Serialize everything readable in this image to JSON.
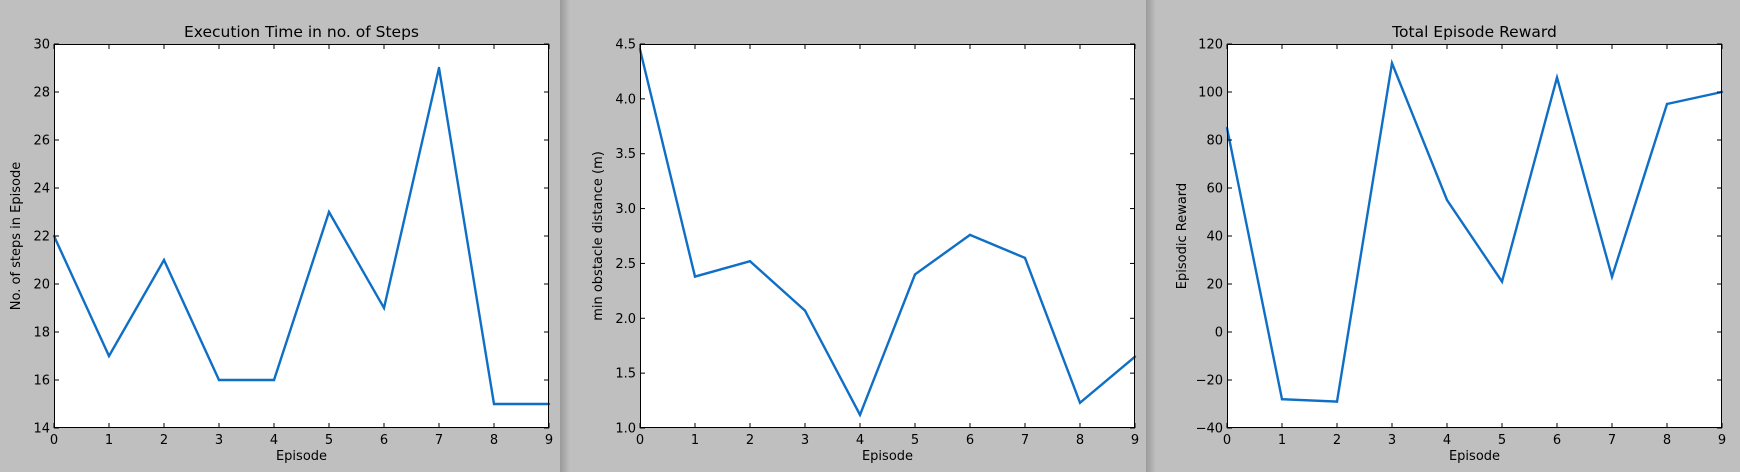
{
  "colors": {
    "line": "#0f6fc6",
    "window_bg": "#bfbfbf",
    "plot_bg": "#ffffff"
  },
  "chart_data": [
    {
      "type": "line",
      "title": "Execution Time in no. of Steps",
      "xlabel": "Episode",
      "ylabel": "No. of steps in Episode",
      "x": [
        0,
        1,
        2,
        3,
        4,
        5,
        6,
        7,
        8,
        9
      ],
      "series": [
        {
          "values": [
            22,
            17,
            21,
            16,
            16,
            23,
            19,
            29,
            15,
            15
          ]
        }
      ],
      "xlim": [
        0,
        9
      ],
      "ylim": [
        14,
        30
      ],
      "xticks": [
        0,
        1,
        2,
        3,
        4,
        5,
        6,
        7,
        8,
        9
      ],
      "yticks": [
        14,
        16,
        18,
        20,
        22,
        24,
        26,
        28,
        30
      ],
      "xtick_labels": [
        "0",
        "1",
        "2",
        "3",
        "4",
        "5",
        "6",
        "7",
        "8",
        "9"
      ],
      "ytick_labels": [
        "14",
        "16",
        "18",
        "20",
        "22",
        "24",
        "26",
        "28",
        "30"
      ],
      "grid": false
    },
    {
      "type": "line",
      "title": "",
      "xlabel": "Episode",
      "ylabel": "min obstacle distance (m)",
      "x": [
        0,
        1,
        2,
        3,
        4,
        5,
        6,
        7,
        8,
        9
      ],
      "series": [
        {
          "values": [
            4.45,
            2.38,
            2.52,
            2.07,
            1.12,
            2.4,
            2.76,
            2.55,
            1.23,
            1.65
          ]
        }
      ],
      "xlim": [
        0,
        9
      ],
      "ylim": [
        1.0,
        4.5
      ],
      "xticks": [
        0,
        1,
        2,
        3,
        4,
        5,
        6,
        7,
        8,
        9
      ],
      "yticks": [
        1.0,
        1.5,
        2.0,
        2.5,
        3.0,
        3.5,
        4.0,
        4.5
      ],
      "xtick_labels": [
        "0",
        "1",
        "2",
        "3",
        "4",
        "5",
        "6",
        "7",
        "8",
        "9"
      ],
      "ytick_labels": [
        "1.0",
        "1.5",
        "2.0",
        "2.5",
        "3.0",
        "3.5",
        "4.0",
        "4.5"
      ],
      "grid": false
    },
    {
      "type": "line",
      "title": "Total Episode Reward",
      "xlabel": "Episode",
      "ylabel": "Episodic Reward",
      "x": [
        0,
        1,
        2,
        3,
        4,
        5,
        6,
        7,
        8,
        9
      ],
      "series": [
        {
          "values": [
            85,
            -28,
            -29,
            112,
            55,
            21,
            106,
            23,
            95,
            100
          ]
        }
      ],
      "xlim": [
        0,
        9
      ],
      "ylim": [
        -40,
        120
      ],
      "xticks": [
        0,
        1,
        2,
        3,
        4,
        5,
        6,
        7,
        8,
        9
      ],
      "yticks": [
        -40,
        -20,
        0,
        20,
        40,
        60,
        80,
        100,
        120
      ],
      "xtick_labels": [
        "0",
        "1",
        "2",
        "3",
        "4",
        "5",
        "6",
        "7",
        "8",
        "9"
      ],
      "ytick_labels": [
        "−40",
        "−20",
        "0",
        "20",
        "40",
        "60",
        "80",
        "100",
        "120"
      ],
      "grid": false
    }
  ]
}
